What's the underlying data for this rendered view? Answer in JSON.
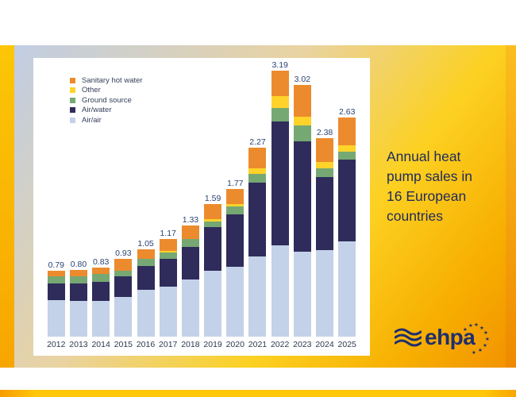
{
  "slide": {
    "title": "Annual heat pump sales in 16 European countries"
  },
  "logo": {
    "text": "ehpa",
    "wave_icon": "triple-wave-icon",
    "stars_icon": "eu-stars-arc",
    "color": "#1F2F6E"
  },
  "chart_data": {
    "type": "bar",
    "stacked": true,
    "categories": [
      "2012",
      "2013",
      "2014",
      "2015",
      "2016",
      "2017",
      "2018",
      "2019",
      "2020",
      "2021",
      "2022",
      "2023",
      "2024",
      "2025"
    ],
    "value_labels": [
      "0.79",
      "0.80",
      "0.83",
      "0.93",
      "1.05",
      "1.17",
      "1.33",
      "1.59",
      "1.77",
      "2.27",
      "3.19",
      "3.02",
      "2.38",
      "2.63"
    ],
    "totals": [
      0.79,
      0.8,
      0.83,
      0.93,
      1.05,
      1.17,
      1.33,
      1.59,
      1.77,
      2.27,
      3.19,
      3.02,
      2.38,
      2.63
    ],
    "series": [
      {
        "name": "Air/air",
        "color": "#C3D2E8",
        "values": [
          0.44,
          0.43,
          0.43,
          0.48,
          0.56,
          0.6,
          0.69,
          0.79,
          0.84,
          0.96,
          1.1,
          1.02,
          1.04,
          1.14
        ]
      },
      {
        "name": "Air/water",
        "color": "#2F2C5B",
        "values": [
          0.2,
          0.21,
          0.23,
          0.24,
          0.29,
          0.33,
          0.39,
          0.52,
          0.63,
          0.89,
          1.48,
          1.32,
          0.87,
          0.98
        ]
      },
      {
        "name": "Ground source",
        "color": "#76A873",
        "values": [
          0.08,
          0.08,
          0.09,
          0.07,
          0.08,
          0.08,
          0.09,
          0.07,
          0.09,
          0.1,
          0.16,
          0.19,
          0.11,
          0.1
        ]
      },
      {
        "name": "Other",
        "color": "#FFD32A",
        "values": [
          0.0,
          0.0,
          0.0,
          0.0,
          0.0,
          0.02,
          0.0,
          0.03,
          0.03,
          0.07,
          0.15,
          0.11,
          0.08,
          0.08
        ]
      },
      {
        "name": "Sanitary hot water",
        "color": "#EC8B2D",
        "values": [
          0.07,
          0.08,
          0.08,
          0.14,
          0.12,
          0.14,
          0.16,
          0.18,
          0.18,
          0.25,
          0.3,
          0.38,
          0.28,
          0.33
        ]
      }
    ],
    "legend": {
      "position": "top-left",
      "order_top_to_bottom": [
        "Sanitary hot water",
        "Other",
        "Ground source",
        "Air/water",
        "Air/air"
      ]
    },
    "xlabel": "",
    "ylabel": "",
    "grid": false,
    "bar_value_labels_shown": true
  }
}
